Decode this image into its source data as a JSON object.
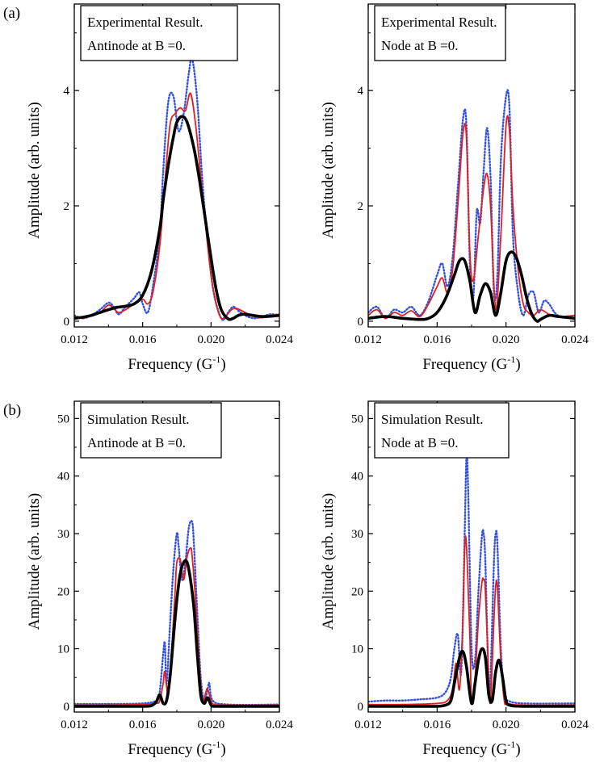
{
  "figure": {
    "row_tags": [
      "(a)",
      "(b)"
    ]
  },
  "chart_data": [
    {
      "type": "line",
      "panel": "top-left",
      "annotation": [
        "Experimental Result.",
        "Antinode at B =0."
      ],
      "xlabel": "Frequency (G",
      "xlabel_sup": "-1",
      "xlabel_end": ")",
      "ylabel": "Amplitude (arb. units)",
      "xlim": [
        0.012,
        0.024
      ],
      "ylim": [
        -0.1,
        5.5
      ],
      "xticks": [
        0.012,
        0.016,
        0.02,
        0.024
      ],
      "xtick_labels": [
        "0.012",
        "0.016",
        "0.020",
        "0.024"
      ],
      "yticks": [
        0,
        2,
        4
      ],
      "ytick_labels": [
        "0",
        "2",
        "4"
      ],
      "series": [
        {
          "name": "black",
          "color": "#000000",
          "style": "solid-thick",
          "x": [
            0.012,
            0.0125,
            0.013,
            0.0135,
            0.014,
            0.0145,
            0.015,
            0.0155,
            0.016,
            0.0165,
            0.017,
            0.0172,
            0.0175,
            0.0178,
            0.018,
            0.0183,
            0.0186,
            0.019,
            0.0193,
            0.0196,
            0.02,
            0.0203,
            0.0206,
            0.021,
            0.0213,
            0.0216,
            0.022,
            0.023,
            0.024
          ],
          "y": [
            0.05,
            0.07,
            0.1,
            0.15,
            0.2,
            0.24,
            0.26,
            0.3,
            0.45,
            0.85,
            1.6,
            2.1,
            2.7,
            3.2,
            3.45,
            3.55,
            3.45,
            3.0,
            2.5,
            1.9,
            1.1,
            0.55,
            0.2,
            0.04,
            0.05,
            0.1,
            0.12,
            0.08,
            0.1
          ]
        },
        {
          "name": "red",
          "color": "#e02020",
          "style": "solid",
          "x": [
            0.012,
            0.0125,
            0.013,
            0.0135,
            0.014,
            0.0143,
            0.0146,
            0.015,
            0.0155,
            0.016,
            0.0163,
            0.0166,
            0.017,
            0.0173,
            0.0176,
            0.0179,
            0.0182,
            0.0185,
            0.0188,
            0.0191,
            0.0194,
            0.0197,
            0.02,
            0.0203,
            0.0206,
            0.0209,
            0.0212,
            0.0215,
            0.022,
            0.0225,
            0.023,
            0.0235,
            0.024
          ],
          "y": [
            0.08,
            0.05,
            0.1,
            0.15,
            0.28,
            0.22,
            0.15,
            0.2,
            0.3,
            0.38,
            0.3,
            0.5,
            1.3,
            2.4,
            3.4,
            3.6,
            3.7,
            3.65,
            3.95,
            3.4,
            2.5,
            1.6,
            0.8,
            0.3,
            0.05,
            0.1,
            0.2,
            0.22,
            0.15,
            0.08,
            0.06,
            0.1,
            0.12
          ]
        },
        {
          "name": "blue",
          "color": "#3050e0",
          "style": "dotted",
          "x": [
            0.012,
            0.0125,
            0.013,
            0.0135,
            0.014,
            0.0143,
            0.0146,
            0.015,
            0.0155,
            0.0158,
            0.016,
            0.0163,
            0.0166,
            0.017,
            0.0172,
            0.0175,
            0.0178,
            0.0181,
            0.0184,
            0.0187,
            0.0189,
            0.0192,
            0.0195,
            0.0198,
            0.0201,
            0.0204,
            0.0207,
            0.021,
            0.0213,
            0.0216,
            0.022,
            0.0225,
            0.023,
            0.0235,
            0.024
          ],
          "y": [
            0.1,
            0.05,
            0.1,
            0.2,
            0.32,
            0.25,
            0.12,
            0.25,
            0.4,
            0.5,
            0.3,
            0.15,
            0.6,
            1.5,
            2.6,
            3.8,
            3.9,
            3.3,
            3.6,
            4.3,
            4.55,
            3.8,
            2.4,
            1.4,
            0.6,
            0.2,
            0.02,
            0.15,
            0.25,
            0.18,
            0.1,
            0.05,
            0.08,
            0.12,
            0.1
          ]
        }
      ]
    },
    {
      "type": "line",
      "panel": "top-right",
      "annotation": [
        "Experimental Result.",
        "Node at B =0."
      ],
      "xlabel": "Frequency (G",
      "xlabel_sup": "-1",
      "xlabel_end": ")",
      "ylabel": "Amplitude (arb. units)",
      "xlim": [
        0.012,
        0.024
      ],
      "ylim": [
        -0.1,
        5.5
      ],
      "xticks": [
        0.012,
        0.016,
        0.02,
        0.024
      ],
      "xtick_labels": [
        "0.012",
        "0.016",
        "0.020",
        "0.024"
      ],
      "yticks": [
        0,
        2,
        4
      ],
      "ytick_labels": [
        "0",
        "2",
        "4"
      ],
      "series": [
        {
          "name": "black",
          "color": "#000000",
          "style": "solid-thick",
          "x": [
            0.012,
            0.013,
            0.014,
            0.015,
            0.0155,
            0.016,
            0.0165,
            0.017,
            0.0173,
            0.0176,
            0.0179,
            0.0182,
            0.0185,
            0.0188,
            0.0191,
            0.0194,
            0.0197,
            0.02,
            0.0203,
            0.0206,
            0.0209,
            0.0212,
            0.0215,
            0.0218,
            0.022,
            0.0225,
            0.023,
            0.024
          ],
          "y": [
            0.05,
            0.08,
            0.05,
            0.03,
            0.05,
            0.15,
            0.4,
            0.8,
            1.05,
            1.05,
            0.7,
            0.15,
            0.45,
            0.65,
            0.5,
            0.1,
            0.5,
            1.05,
            1.2,
            1.1,
            0.8,
            0.4,
            0.12,
            0.0,
            0.03,
            0.1,
            0.08,
            0.05
          ]
        },
        {
          "name": "red",
          "color": "#e02020",
          "style": "solid",
          "x": [
            0.012,
            0.0125,
            0.013,
            0.0135,
            0.014,
            0.0145,
            0.015,
            0.0155,
            0.016,
            0.0163,
            0.0166,
            0.0169,
            0.0172,
            0.0175,
            0.0177,
            0.0179,
            0.0181,
            0.0184,
            0.0187,
            0.0189,
            0.0191,
            0.0194,
            0.0197,
            0.02,
            0.0202,
            0.0204,
            0.0207,
            0.021,
            0.0213,
            0.0216,
            0.022,
            0.0225,
            0.023,
            0.024
          ],
          "y": [
            0.1,
            0.2,
            0.05,
            0.15,
            0.1,
            0.18,
            0.08,
            0.3,
            0.6,
            0.75,
            0.5,
            0.9,
            2.0,
            3.25,
            3.2,
            1.2,
            0.7,
            1.5,
            2.3,
            2.55,
            2.0,
            0.2,
            1.5,
            3.4,
            3.3,
            2.0,
            0.9,
            0.3,
            0.15,
            0.1,
            0.2,
            0.12,
            0.08,
            0.1
          ]
        },
        {
          "name": "blue",
          "color": "#3050e0",
          "style": "dotted",
          "x": [
            0.012,
            0.0125,
            0.013,
            0.0135,
            0.014,
            0.0145,
            0.015,
            0.0155,
            0.016,
            0.0163,
            0.0166,
            0.0169,
            0.0172,
            0.0175,
            0.0177,
            0.0179,
            0.0181,
            0.0183,
            0.0185,
            0.0187,
            0.0189,
            0.0191,
            0.0193,
            0.0195,
            0.0197,
            0.02,
            0.0202,
            0.0204,
            0.0207,
            0.021,
            0.0213,
            0.0216,
            0.0219,
            0.0222,
            0.0225,
            0.023,
            0.024
          ],
          "y": [
            0.15,
            0.25,
            0.05,
            0.2,
            0.15,
            0.25,
            0.1,
            0.35,
            0.8,
            1.0,
            0.6,
            1.1,
            2.3,
            3.5,
            3.4,
            1.0,
            0.4,
            1.9,
            1.7,
            2.6,
            3.35,
            2.5,
            0.5,
            0.8,
            2.8,
            3.9,
            3.7,
            1.5,
            0.5,
            0.1,
            0.45,
            0.5,
            0.15,
            0.35,
            0.3,
            0.1,
            0.05
          ]
        }
      ]
    },
    {
      "type": "line",
      "panel": "bottom-left",
      "annotation": [
        "Simulation Result.",
        "Antinode at B =0."
      ],
      "xlabel": "Frequency (G",
      "xlabel_sup": "-1",
      "xlabel_end": ")",
      "ylabel": "Amplitude (arb. units)",
      "xlim": [
        0.012,
        0.024
      ],
      "ylim": [
        -1,
        53
      ],
      "xticks": [
        0.012,
        0.016,
        0.02,
        0.024
      ],
      "xtick_labels": [
        "0.012",
        "0.016",
        "0.020",
        "0.024"
      ],
      "yticks": [
        0,
        10,
        20,
        30,
        40,
        50
      ],
      "ytick_labels": [
        "0",
        "10",
        "20",
        "30",
        "40",
        "50"
      ],
      "series": [
        {
          "name": "black",
          "color": "#000000",
          "style": "solid-thick",
          "x": [
            0.012,
            0.014,
            0.016,
            0.0165,
            0.0168,
            0.017,
            0.0172,
            0.0174,
            0.0176,
            0.0178,
            0.018,
            0.0182,
            0.0184,
            0.0186,
            0.0188,
            0.019,
            0.0192,
            0.0194,
            0.0196,
            0.0198,
            0.02,
            0.0202,
            0.021,
            0.024
          ],
          "y": [
            0.0,
            0.0,
            0.0,
            0.1,
            0.8,
            2.0,
            0.5,
            1.0,
            5.0,
            12.0,
            18.5,
            23.0,
            25.0,
            25.0,
            22.0,
            17.0,
            9.0,
            2.0,
            0.5,
            1.5,
            0.2,
            0.0,
            0.0,
            0.0
          ]
        },
        {
          "name": "red",
          "color": "#e02020",
          "style": "solid",
          "x": [
            0.012,
            0.014,
            0.016,
            0.0168,
            0.017,
            0.0172,
            0.0173,
            0.0175,
            0.0177,
            0.0179,
            0.018,
            0.0182,
            0.0184,
            0.0186,
            0.0188,
            0.0189,
            0.0191,
            0.0193,
            0.0195,
            0.0197,
            0.0198,
            0.02,
            0.0202,
            0.021,
            0.024
          ],
          "y": [
            0.2,
            0.2,
            0.3,
            0.5,
            1.0,
            4.0,
            6.0,
            2.0,
            10.0,
            20.0,
            25.0,
            25.5,
            22.0,
            26.0,
            27.5,
            26.0,
            18.0,
            8.0,
            1.0,
            2.5,
            3.0,
            1.0,
            0.3,
            0.2,
            0.2
          ]
        },
        {
          "name": "blue",
          "color": "#3050e0",
          "style": "dotted",
          "x": [
            0.012,
            0.014,
            0.016,
            0.0168,
            0.017,
            0.0172,
            0.0173,
            0.0174,
            0.0176,
            0.0178,
            0.018,
            0.0181,
            0.0183,
            0.0185,
            0.0187,
            0.0189,
            0.019,
            0.0192,
            0.0194,
            0.0196,
            0.0198,
            0.0199,
            0.0201,
            0.021,
            0.024
          ],
          "y": [
            0.4,
            0.4,
            0.5,
            1.0,
            2.5,
            9.0,
            11.0,
            4.0,
            14.0,
            24.0,
            30.0,
            28.0,
            22.0,
            25.0,
            31.0,
            32.0,
            28.0,
            16.0,
            5.0,
            1.0,
            3.0,
            4.0,
            1.0,
            0.3,
            0.3
          ]
        }
      ]
    },
    {
      "type": "line",
      "panel": "bottom-right",
      "annotation": [
        "Simulation Result.",
        "Node at B =0."
      ],
      "xlabel": "Frequency (G",
      "xlabel_sup": "-1",
      "xlabel_end": ")",
      "ylabel": "Amplitude (arb. units)",
      "xlim": [
        0.012,
        0.024
      ],
      "ylim": [
        -1,
        53
      ],
      "xticks": [
        0.012,
        0.016,
        0.02,
        0.024
      ],
      "xtick_labels": [
        "0.012",
        "0.016",
        "0.020",
        "0.024"
      ],
      "yticks": [
        0,
        10,
        20,
        30,
        40,
        50
      ],
      "ytick_labels": [
        "0",
        "10",
        "20",
        "30",
        "40",
        "50"
      ],
      "series": [
        {
          "name": "black",
          "color": "#000000",
          "style": "solid-thick",
          "x": [
            0.012,
            0.015,
            0.016,
            0.0165,
            0.0168,
            0.017,
            0.0173,
            0.0175,
            0.0177,
            0.018,
            0.0182,
            0.0184,
            0.0186,
            0.0188,
            0.019,
            0.0192,
            0.0194,
            0.0196,
            0.0198,
            0.02,
            0.0202,
            0.021,
            0.024
          ],
          "y": [
            0.0,
            0.0,
            0.0,
            0.2,
            1.0,
            4.0,
            8.5,
            9.5,
            7.0,
            0.5,
            4.0,
            8.0,
            10.0,
            8.5,
            2.0,
            1.0,
            6.0,
            8.0,
            5.0,
            1.0,
            0.2,
            0.0,
            0.0
          ]
        },
        {
          "name": "red",
          "color": "#e02020",
          "style": "solid",
          "x": [
            0.012,
            0.014,
            0.016,
            0.0166,
            0.0169,
            0.0171,
            0.0173,
            0.0175,
            0.0176,
            0.0177,
            0.0179,
            0.018,
            0.0182,
            0.0184,
            0.0186,
            0.0187,
            0.0188,
            0.019,
            0.0191,
            0.0193,
            0.0194,
            0.0195,
            0.0197,
            0.0199,
            0.0201,
            0.021,
            0.024
          ],
          "y": [
            0.3,
            0.3,
            0.5,
            1.0,
            3.0,
            7.5,
            3.0,
            15.0,
            27.5,
            28.0,
            12.0,
            1.0,
            5.0,
            15.0,
            21.5,
            22.0,
            20.0,
            5.0,
            1.0,
            15.0,
            21.0,
            20.5,
            8.0,
            1.0,
            0.5,
            0.2,
            0.2
          ]
        },
        {
          "name": "blue",
          "color": "#3050e0",
          "style": "dotted",
          "x": [
            0.012,
            0.013,
            0.014,
            0.015,
            0.016,
            0.0165,
            0.0168,
            0.017,
            0.0172,
            0.0174,
            0.0176,
            0.0177,
            0.0178,
            0.018,
            0.0182,
            0.0184,
            0.0186,
            0.0187,
            0.0188,
            0.019,
            0.0191,
            0.0193,
            0.0194,
            0.0195,
            0.0197,
            0.0199,
            0.0201,
            0.021,
            0.024
          ],
          "y": [
            0.8,
            1.0,
            1.0,
            1.2,
            1.5,
            2.5,
            5.0,
            10.0,
            12.5,
            6.0,
            30.0,
            43.0,
            38.0,
            10.0,
            8.0,
            20.0,
            29.5,
            30.0,
            25.0,
            3.0,
            5.0,
            25.0,
            30.0,
            28.0,
            10.0,
            2.0,
            1.0,
            0.5,
            0.5
          ]
        }
      ]
    }
  ]
}
